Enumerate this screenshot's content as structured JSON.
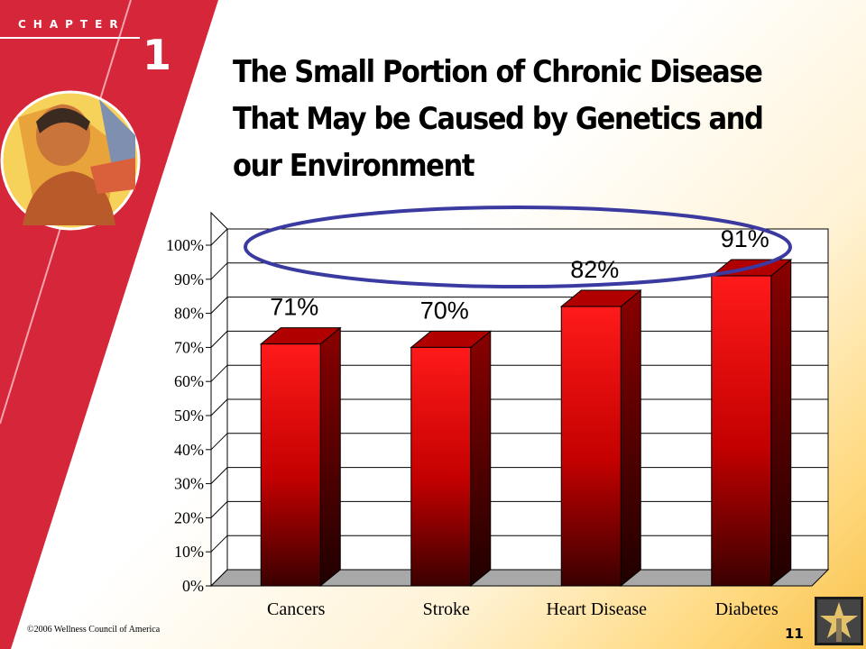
{
  "header": {
    "chapter_word": "CHAPTER",
    "chapter_number": "1",
    "title": "The Small Portion of Chronic Disease That May be Caused by Genetics and our Environment"
  },
  "footer": {
    "copyright": "©2006 Wellness Council of America",
    "page_number": "11"
  },
  "colors": {
    "band": "#d6263a",
    "bar": "#e00000",
    "highlight_ellipse": "#3a3aa0"
  },
  "icons": [
    "person-medallion-icon",
    "star-logo-icon"
  ],
  "chart_data": {
    "type": "bar",
    "categories": [
      "Cancers",
      "Stroke",
      "Heart Disease",
      "Diabetes"
    ],
    "values": [
      71,
      70,
      82,
      91
    ],
    "data_labels": [
      "71%",
      "70%",
      "82%",
      "91%"
    ],
    "y_ticks": [
      "0%",
      "10%",
      "20%",
      "30%",
      "40%",
      "50%",
      "60%",
      "70%",
      "80%",
      "90%",
      "100%"
    ],
    "ylim": [
      0,
      100
    ],
    "grid": true,
    "legend": "none",
    "annotation": "ellipse around the 100% region"
  }
}
